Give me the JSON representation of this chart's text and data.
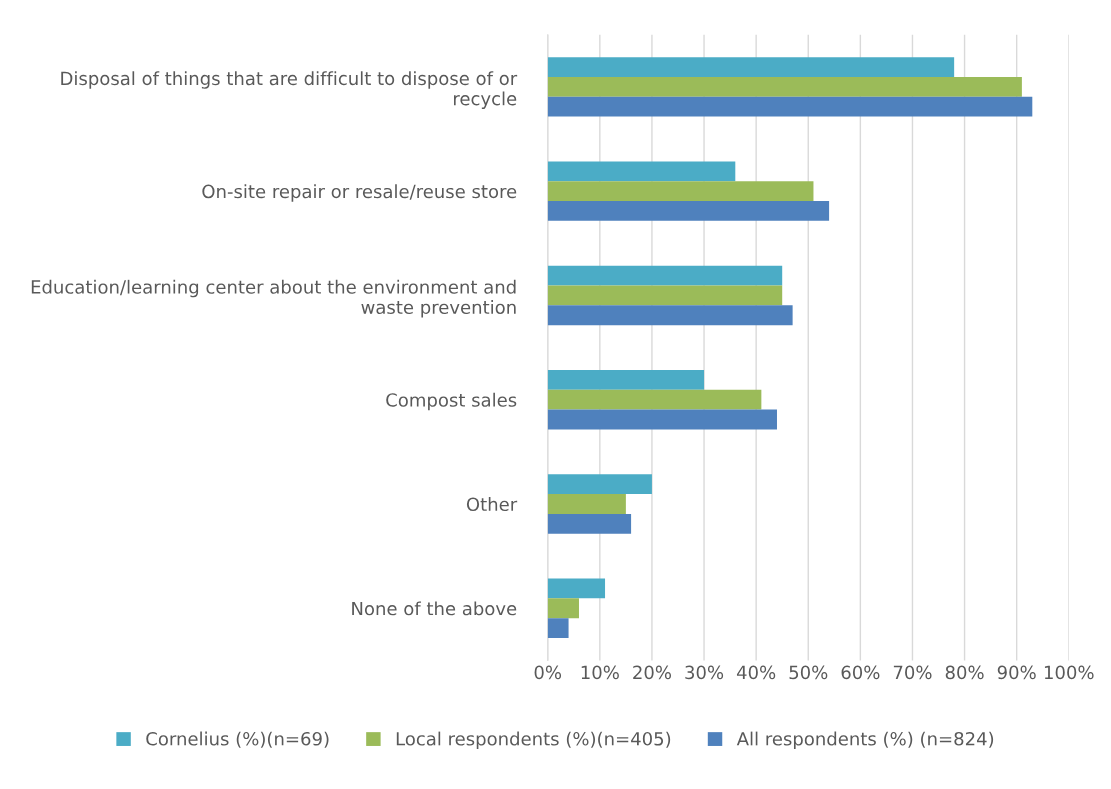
{
  "chart_data": {
    "type": "bar",
    "orientation": "horizontal",
    "categories": [
      "Disposal of things that are difficult to dispose of or recycle",
      "On-site repair or resale/reuse store",
      "Education/learning center about the environment and waste prevention",
      "Compost sales",
      "Other",
      "None of the above"
    ],
    "series": [
      {
        "name": "Cornelius (%)(n=69)",
        "color": "#4bacc6",
        "values": [
          78,
          36,
          45,
          30,
          20,
          11
        ]
      },
      {
        "name": "Local respondents (%)(n=405)",
        "color": "#9bbb59",
        "values": [
          91,
          51,
          45,
          41,
          15,
          6
        ]
      },
      {
        "name": "All respondents (%) (n=824)",
        "color": "#4f81bd",
        "values": [
          93,
          54,
          47,
          44,
          16,
          4
        ]
      }
    ],
    "xlim": [
      0,
      100
    ],
    "xticks": [
      {
        "value": 0,
        "label": "0%"
      },
      {
        "value": 10,
        "label": "10%"
      },
      {
        "value": 20,
        "label": "20%"
      },
      {
        "value": 30,
        "label": "30%"
      },
      {
        "value": 40,
        "label": "40%"
      },
      {
        "value": 50,
        "label": "50%"
      },
      {
        "value": 60,
        "label": "60%"
      },
      {
        "value": 70,
        "label": "70%"
      },
      {
        "value": 80,
        "label": "80%"
      },
      {
        "value": 90,
        "label": "90%"
      },
      {
        "value": 100,
        "label": "100%"
      }
    ],
    "grid": "x",
    "legend": "bottom"
  }
}
